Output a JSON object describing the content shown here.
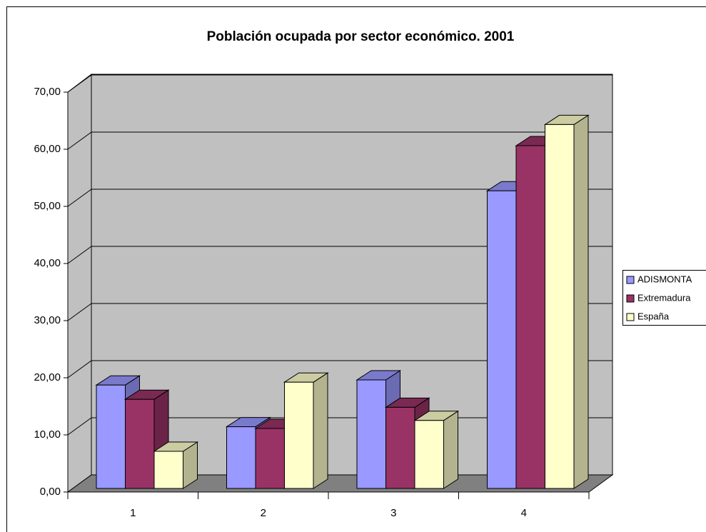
{
  "chart_data": {
    "type": "bar3d",
    "title": "Población ocupada por sector económico. 2001",
    "categories": [
      "1",
      "2",
      "3",
      "4"
    ],
    "series": [
      {
        "name": "ADISMONTA",
        "color": "#9999ff",
        "values": [
          18.1,
          10.8,
          19.0,
          52.1
        ]
      },
      {
        "name": "Extremadura",
        "color": "#993366",
        "values": [
          15.6,
          10.5,
          14.2,
          60.0
        ]
      },
      {
        "name": "España",
        "color": "#ffffcc",
        "values": [
          6.5,
          18.6,
          11.9,
          63.7
        ]
      }
    ],
    "ylim": [
      0,
      70
    ],
    "yticks": [
      {
        "value": 0,
        "label": "0,00"
      },
      {
        "value": 10,
        "label": "10,00"
      },
      {
        "value": 20,
        "label": "20,00"
      },
      {
        "value": 30,
        "label": "30,00"
      },
      {
        "value": 40,
        "label": "40,00"
      },
      {
        "value": 50,
        "label": "50,00"
      },
      {
        "value": 60,
        "label": "60,00"
      },
      {
        "value": 70,
        "label": "70,00"
      }
    ],
    "grid": true
  }
}
